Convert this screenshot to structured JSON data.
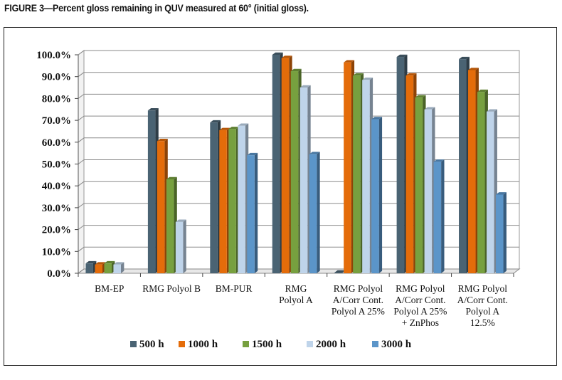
{
  "figure": {
    "caption": "FIGURE 3—Percent gloss remaining in QUV measured at 60° (initial gloss)."
  },
  "chart_data": {
    "type": "bar",
    "variant": "3d-clustered",
    "title": "FIGURE 3—Percent gloss remaining in QUV measured at 60° (initial gloss).",
    "xlabel": "",
    "ylabel": "",
    "ylim": [
      0,
      100
    ],
    "ytick_step": 10,
    "ytick_labels": [
      "0.0%",
      "10.0%",
      "20.0%",
      "30.0%",
      "40.0%",
      "50.0%",
      "60.0%",
      "70.0%",
      "80.0%",
      "90.0%",
      "100.0%"
    ],
    "grid": true,
    "legend": "bottom",
    "categories": [
      [
        "BM-EP"
      ],
      [
        "RMG Polyol B"
      ],
      [
        "BM-PUR"
      ],
      [
        "RMG",
        "Polyol A"
      ],
      [
        "RMG Polyol",
        "A/Corr Cont.",
        "Polyol A 25%"
      ],
      [
        "RMG Polyol",
        "A/Corr Cont.",
        "Polyol A 25%",
        "+ ZnPhos"
      ],
      [
        "RMG Polyol",
        "A/Corr Cont.",
        "Polyol A",
        "12.5%"
      ]
    ],
    "series": [
      {
        "name": "500 h",
        "color": "#4a6373",
        "values": [
          4.5,
          74.5,
          69.0,
          100.0,
          0.3,
          99.0,
          98.0
        ]
      },
      {
        "name": "1000 h",
        "color": "#e46c0a",
        "values": [
          4.0,
          60.5,
          65.5,
          98.5,
          96.5,
          90.5,
          93.0
        ]
      },
      {
        "name": "1500 h",
        "color": "#77a03f",
        "values": [
          4.5,
          43.0,
          66.0,
          92.5,
          90.5,
          80.5,
          83.0
        ]
      },
      {
        "name": "2000 h",
        "color": "#bfd4ea",
        "values": [
          4.0,
          23.5,
          67.5,
          85.0,
          88.5,
          75.0,
          74.0
        ]
      },
      {
        "name": "3000 h",
        "color": "#5b95c9",
        "values": [
          0,
          0,
          54.0,
          54.5,
          70.5,
          51.0,
          36.0
        ]
      }
    ]
  }
}
